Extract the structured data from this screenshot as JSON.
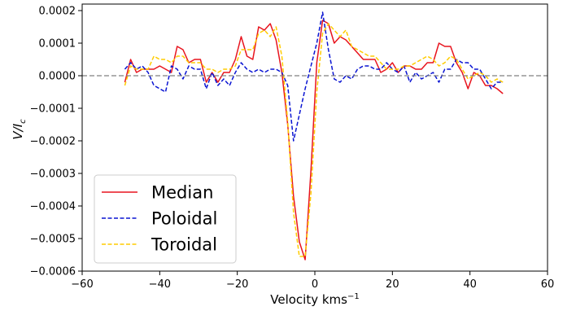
{
  "chart_data": {
    "type": "line",
    "title": "",
    "xlabel": "Velocity kms",
    "xlabel_superscript": "−1",
    "ylabel_main": "V/I",
    "ylabel_subscript": "c",
    "xlim": [
      -60,
      60
    ],
    "ylim": [
      -0.0006,
      0.00022
    ],
    "xticks": [
      -60,
      -40,
      -20,
      0,
      20,
      40,
      60
    ],
    "xtick_labels": [
      "−60",
      "−40",
      "−20",
      "0",
      "20",
      "40",
      "60"
    ],
    "yticks": [
      0.0002,
      0.0001,
      0.0,
      -0.0001,
      -0.0002,
      -0.0003,
      -0.0004,
      -0.0005,
      -0.0006
    ],
    "ytick_labels": [
      "0.0002",
      "0.0001",
      "0.0000",
      "−0.0001",
      "−0.0002",
      "−0.0003",
      "−0.0004",
      "−0.0005",
      "−0.0006"
    ],
    "grid": false,
    "reference_line": {
      "y": 0.0,
      "style": "dashed",
      "color": "#808080"
    },
    "legend": {
      "position": "bottom-left"
    },
    "series": [
      {
        "name": "Median",
        "color": "#e8141e",
        "dash": "solid",
        "x": [
          -49,
          -47.5,
          -46,
          -44.5,
          -43,
          -41.5,
          -40,
          -38.5,
          -37,
          -35.5,
          -34,
          -32.5,
          -31,
          -29.5,
          -28,
          -26.5,
          -25,
          -23.5,
          -22,
          -20.5,
          -19,
          -17.5,
          -16,
          -14.5,
          -13,
          -11.5,
          -10,
          -8.5,
          -7,
          -5.5,
          -4,
          -2.5,
          -1,
          0.5,
          2,
          3.5,
          5,
          6.5,
          8,
          9.5,
          11,
          12.5,
          14,
          15.5,
          17,
          18.5,
          20,
          21.5,
          23,
          24.5,
          26,
          27.5,
          29,
          30.5,
          32,
          33.5,
          35,
          36.5,
          38,
          39.5,
          41,
          42.5,
          44,
          45.5,
          47,
          48.5
        ],
        "values": [
          -2e-05,
          5e-05,
          1e-05,
          2e-05,
          2e-05,
          2e-05,
          3e-05,
          2e-05,
          1e-05,
          9e-05,
          8e-05,
          4e-05,
          5e-05,
          5e-05,
          -2e-05,
          1e-05,
          -2e-05,
          1e-05,
          1e-05,
          5e-05,
          0.00012,
          6e-05,
          5e-05,
          0.00015,
          0.00014,
          0.00016,
          0.00011,
          1e-05,
          -0.00015,
          -0.00037,
          -0.00051,
          -0.000565,
          -0.00029,
          4e-05,
          0.00017,
          0.00016,
          0.0001,
          0.00012,
          0.00011,
          9e-05,
          7e-05,
          5e-05,
          5e-05,
          5e-05,
          1e-05,
          2e-05,
          4e-05,
          1e-05,
          3e-05,
          3e-05,
          2e-05,
          2e-05,
          4e-05,
          4e-05,
          0.0001,
          9e-05,
          9e-05,
          4e-05,
          1e-05,
          -4e-05,
          1e-05,
          0,
          -3e-05,
          -3e-05,
          -4e-05,
          -5.5e-05
        ]
      },
      {
        "name": "Poloidal",
        "color": "#0a14d2",
        "dash": "dashed",
        "x": [
          -49,
          -47.5,
          -46,
          -44.5,
          -43,
          -41.5,
          -40,
          -38.5,
          -37,
          -35.5,
          -34,
          -32.5,
          -31,
          -29.5,
          -28,
          -26.5,
          -25,
          -23.5,
          -22,
          -20.5,
          -19,
          -17.5,
          -16,
          -14.5,
          -13,
          -11.5,
          -10,
          -8.5,
          -7,
          -5.5,
          -4,
          -2.5,
          -1,
          0.5,
          2,
          3.5,
          5,
          6.5,
          8,
          9.5,
          11,
          12.5,
          14,
          15.5,
          17,
          18.5,
          20,
          21.5,
          23,
          24.5,
          26,
          27.5,
          29,
          30.5,
          32,
          33.5,
          35,
          36.5,
          38,
          39.5,
          41,
          42.5,
          44,
          45.5,
          47,
          48.5
        ],
        "values": [
          2e-05,
          4e-05,
          2e-05,
          3e-05,
          1e-05,
          -3e-05,
          -4e-05,
          -5e-05,
          3e-05,
          2e-05,
          -1e-05,
          3e-05,
          2e-05,
          2e-05,
          -4e-05,
          1e-05,
          -3e-05,
          -1e-05,
          -3e-05,
          1e-05,
          4e-05,
          2e-05,
          1e-05,
          2e-05,
          1e-05,
          2e-05,
          2e-05,
          1e-05,
          -3e-05,
          -0.0002,
          -0.00012,
          -4e-05,
          3e-05,
          0.0001,
          0.000195,
          8e-05,
          -1e-05,
          -2e-05,
          0,
          -1e-05,
          2e-05,
          3e-05,
          3e-05,
          2e-05,
          2e-05,
          4e-05,
          2e-05,
          1e-05,
          3e-05,
          -2e-05,
          1e-05,
          -1e-05,
          0,
          1e-05,
          -2e-05,
          2e-05,
          2e-05,
          5e-05,
          4e-05,
          4e-05,
          2e-05,
          2e-05,
          -1e-05,
          -4e-05,
          -2e-05,
          -2e-05
        ]
      },
      {
        "name": "Toroidal",
        "color": "#ffcc00",
        "dash": "dashed",
        "x": [
          -49,
          -47.5,
          -46,
          -44.5,
          -43,
          -41.5,
          -40,
          -38.5,
          -37,
          -35.5,
          -34,
          -32.5,
          -31,
          -29.5,
          -28,
          -26.5,
          -25,
          -23.5,
          -22,
          -20.5,
          -19,
          -17.5,
          -16,
          -14.5,
          -13,
          -11.5,
          -10,
          -8.5,
          -7,
          -5.5,
          -4,
          -2.5,
          -1,
          0.5,
          2,
          3.5,
          5,
          6.5,
          8,
          9.5,
          11,
          12.5,
          14,
          15.5,
          17,
          18.5,
          20,
          21.5,
          23,
          24.5,
          26,
          27.5,
          29,
          30.5,
          32,
          33.5,
          35,
          36.5,
          38,
          39.5,
          41,
          42.5,
          44,
          45.5,
          47,
          48.5
        ],
        "values": [
          -3e-05,
          3e-05,
          2e-05,
          2e-05,
          2e-05,
          6e-05,
          5e-05,
          5e-05,
          4e-05,
          6e-05,
          6e-05,
          4e-05,
          4e-05,
          4e-05,
          2e-05,
          2e-05,
          1e-05,
          2e-05,
          2e-05,
          3e-05,
          8e-05,
          8e-05,
          8e-05,
          0.00013,
          0.00014,
          0.00012,
          0.00015,
          6e-05,
          -0.00014,
          -0.00042,
          -0.000555,
          -0.000555,
          -0.00036,
          -5e-05,
          0.00013,
          0.00016,
          0.00014,
          0.00012,
          0.00014,
          9e-05,
          8e-05,
          7e-05,
          6e-05,
          6e-05,
          4e-05,
          2e-05,
          2e-05,
          2e-05,
          3e-05,
          3e-05,
          4e-05,
          5e-05,
          6e-05,
          5e-05,
          3e-05,
          4e-05,
          6e-05,
          5e-05,
          2e-05,
          -1e-05,
          0,
          1e-05,
          0,
          -2e-05,
          -1e-05,
          -2e-05
        ]
      }
    ]
  }
}
